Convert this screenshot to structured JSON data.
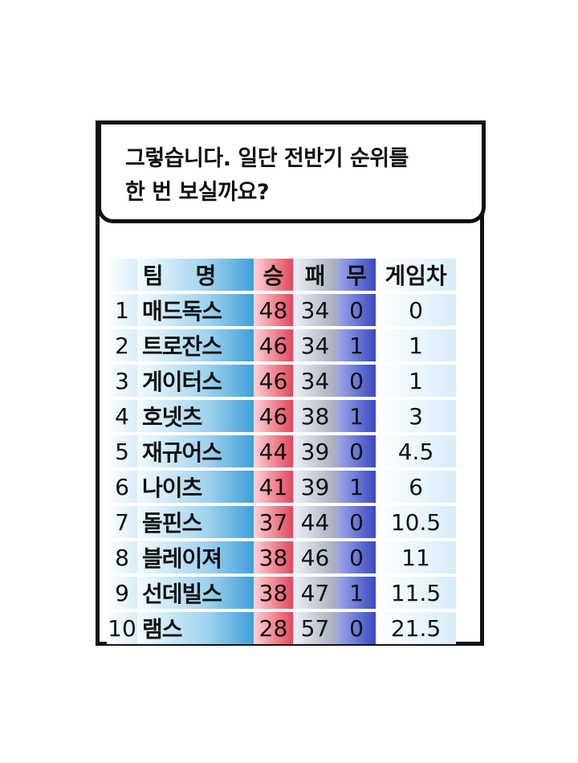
{
  "bubble": {
    "line1": "그렇습니다. 일단 전반기 순위를",
    "line2": "한 번 보실까요?"
  },
  "table": {
    "headers": {
      "team": "팀명",
      "win": "승",
      "loss": "패",
      "draw": "무",
      "games_behind": "게임차"
    },
    "rows": [
      {
        "rank": "1",
        "team": "매드독스",
        "win": "48",
        "loss": "34",
        "draw": "0",
        "gb": "0"
      },
      {
        "rank": "2",
        "team": "트로잔스",
        "win": "46",
        "loss": "34",
        "draw": "1",
        "gb": "1"
      },
      {
        "rank": "3",
        "team": "게이터스",
        "win": "46",
        "loss": "34",
        "draw": "0",
        "gb": "1"
      },
      {
        "rank": "4",
        "team": "호넷츠",
        "win": "46",
        "loss": "38",
        "draw": "1",
        "gb": "3"
      },
      {
        "rank": "5",
        "team": "재규어스",
        "win": "44",
        "loss": "39",
        "draw": "0",
        "gb": "4.5"
      },
      {
        "rank": "6",
        "team": "나이츠",
        "win": "41",
        "loss": "39",
        "draw": "1",
        "gb": "6"
      },
      {
        "rank": "7",
        "team": "돌핀스",
        "win": "37",
        "loss": "44",
        "draw": "0",
        "gb": "10.5"
      },
      {
        "rank": "8",
        "team": "블레이져",
        "win": "38",
        "loss": "46",
        "draw": "0",
        "gb": "11"
      },
      {
        "rank": "9",
        "team": "선데빌스",
        "win": "38",
        "loss": "47",
        "draw": "1",
        "gb": "11.5"
      },
      {
        "rank": "10",
        "team": "램스",
        "win": "28",
        "loss": "57",
        "draw": "0",
        "gb": "21.5"
      }
    ]
  }
}
